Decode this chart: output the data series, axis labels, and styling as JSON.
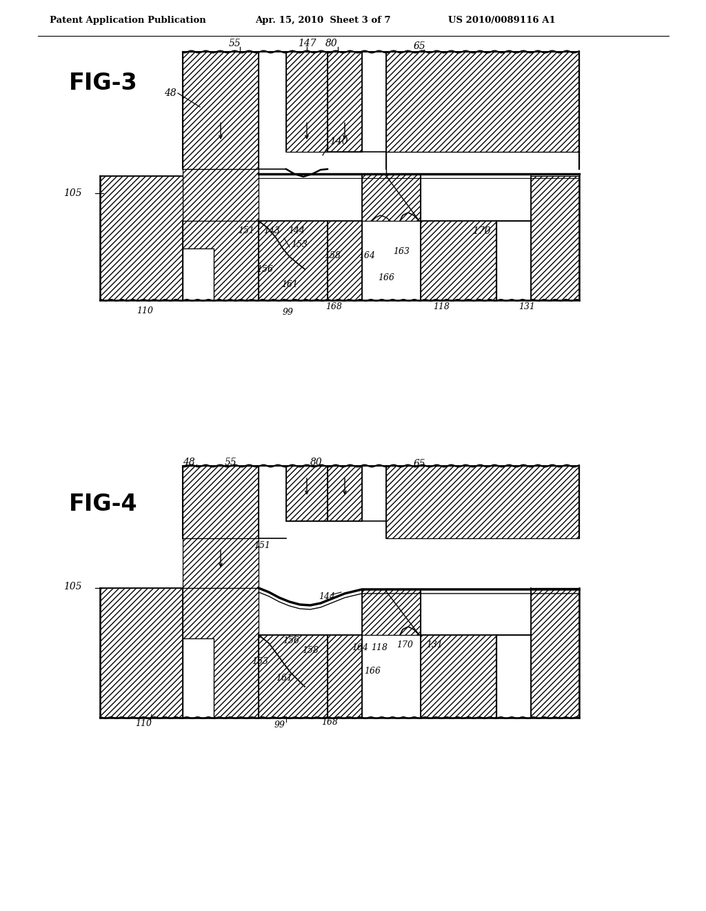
{
  "background_color": "#ffffff",
  "header_text": "Patent Application Publication",
  "header_date": "Apr. 15, 2010  Sheet 3 of 7",
  "header_patent": "US 2010/0089116 A1",
  "fig3_label": "FIG-3",
  "fig4_label": "FIG-4",
  "text_color": "#000000",
  "hatch_color": "#000000",
  "line_color": "#000000"
}
